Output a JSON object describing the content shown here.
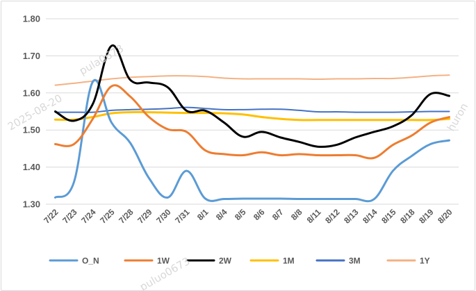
{
  "chart_data": {
    "type": "line",
    "title": "",
    "xlabel": "",
    "ylabel": "",
    "ylim": [
      1.3,
      1.8
    ],
    "yticks": [
      "1.30",
      "1.40",
      "1.50",
      "1.60",
      "1.70",
      "1.80"
    ],
    "grid": "horizontal",
    "legend_position": "bottom",
    "categories": [
      "7/22",
      "7/23",
      "7/24",
      "7/25",
      "7/28",
      "7/29",
      "7/30",
      "7/31",
      "8/1",
      "8/4",
      "8/5",
      "8/6",
      "8/7",
      "8/8",
      "8/11",
      "8/12",
      "8/13",
      "8/14",
      "8/15",
      "8/18",
      "8/19",
      "8/20"
    ],
    "series": [
      {
        "name": "O_N",
        "color": "#5b9bd5",
        "values": [
          1.318,
          1.36,
          1.63,
          1.52,
          1.465,
          1.37,
          1.318,
          1.39,
          1.315,
          1.314,
          1.315,
          1.315,
          1.315,
          1.314,
          1.314,
          1.314,
          1.314,
          1.314,
          1.39,
          1.43,
          1.462,
          1.472
        ]
      },
      {
        "name": "1W",
        "color": "#ed7d31",
        "values": [
          1.462,
          1.462,
          1.53,
          1.618,
          1.59,
          1.535,
          1.502,
          1.495,
          1.445,
          1.435,
          1.432,
          1.44,
          1.432,
          1.435,
          1.432,
          1.432,
          1.432,
          1.425,
          1.46,
          1.485,
          1.52,
          1.535
        ]
      },
      {
        "name": "2W",
        "color": "#000000",
        "values": [
          1.55,
          1.525,
          1.57,
          1.727,
          1.635,
          1.628,
          1.615,
          1.552,
          1.552,
          1.52,
          1.482,
          1.495,
          1.48,
          1.468,
          1.455,
          1.46,
          1.48,
          1.495,
          1.51,
          1.54,
          1.597,
          1.592
        ]
      },
      {
        "name": "1M",
        "color": "#ffc000",
        "values": [
          1.528,
          1.528,
          1.535,
          1.545,
          1.548,
          1.548,
          1.547,
          1.546,
          1.546,
          1.545,
          1.542,
          1.535,
          1.53,
          1.527,
          1.527,
          1.527,
          1.527,
          1.527,
          1.527,
          1.527,
          1.527,
          1.53
        ]
      },
      {
        "name": "3M",
        "color": "#4472c4",
        "values": [
          1.548,
          1.548,
          1.548,
          1.553,
          1.555,
          1.556,
          1.558,
          1.561,
          1.558,
          1.555,
          1.555,
          1.556,
          1.556,
          1.553,
          1.549,
          1.549,
          1.548,
          1.548,
          1.548,
          1.549,
          1.55,
          1.55
        ]
      },
      {
        "name": "1Y",
        "color": "#f4b183",
        "values": [
          1.621,
          1.626,
          1.632,
          1.638,
          1.642,
          1.644,
          1.646,
          1.646,
          1.644,
          1.64,
          1.638,
          1.638,
          1.638,
          1.638,
          1.637,
          1.638,
          1.638,
          1.639,
          1.639,
          1.642,
          1.646,
          1.648
        ]
      }
    ]
  },
  "watermarks": [
    "2025-08-20",
    "pula0673",
    "huron",
    "puluo0673"
  ]
}
